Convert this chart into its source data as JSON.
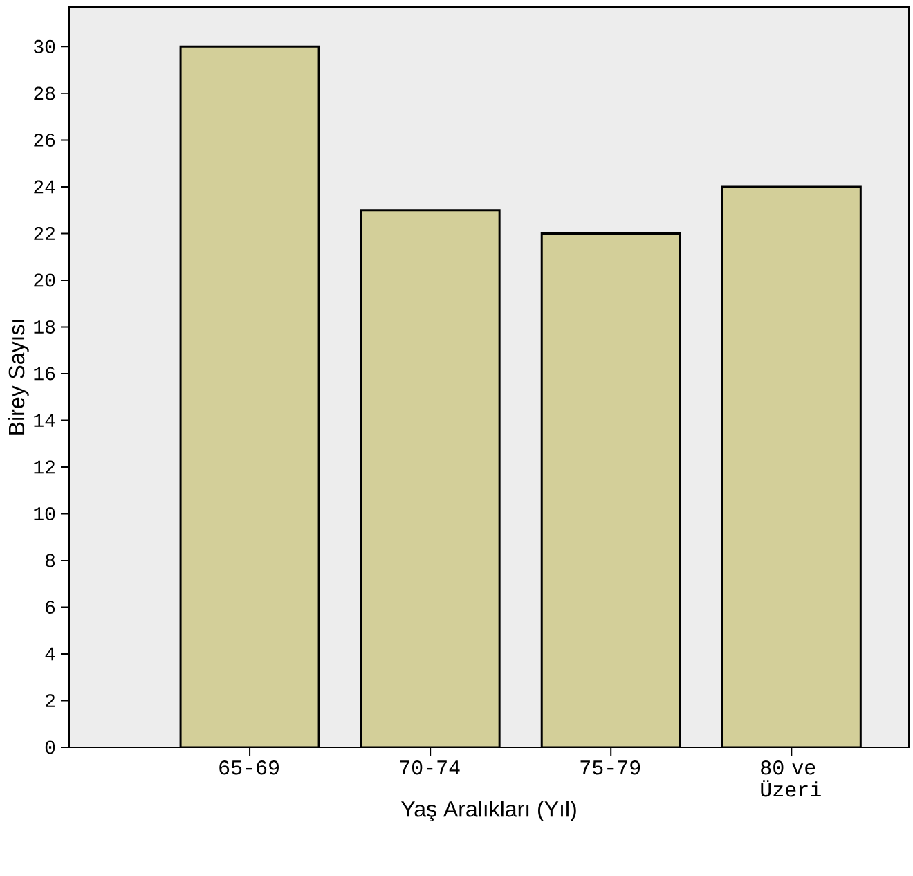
{
  "chart_data": {
    "type": "bar",
    "xlabel": "Yaş Aralıkları (Yıl)",
    "ylabel": "Birey Sayısı",
    "categories": [
      "65-69",
      "70-74",
      "75-79",
      "80 ve Üzeri"
    ],
    "values": [
      30,
      23,
      22,
      24
    ],
    "color": "#d3cf99",
    "ylim": [
      0,
      31.7
    ],
    "yticks": [
      0,
      2,
      4,
      6,
      8,
      10,
      12,
      14,
      16,
      18,
      20,
      22,
      24,
      26,
      28,
      30
    ]
  }
}
